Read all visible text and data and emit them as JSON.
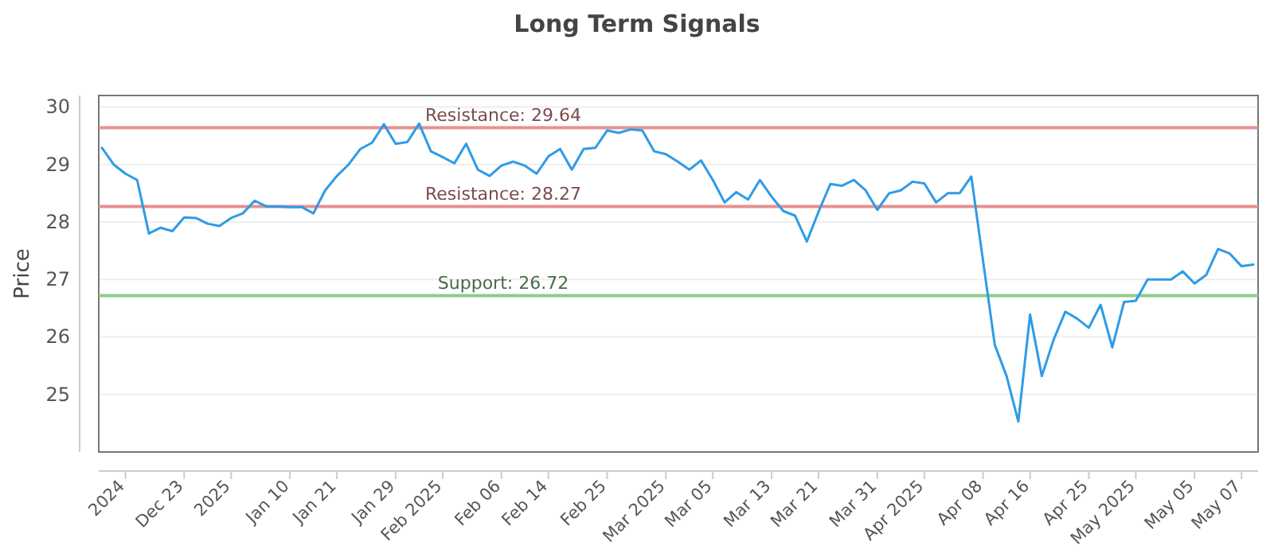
{
  "chart_data": {
    "type": "line",
    "title": "Long Term Signals",
    "ylabel": "Price",
    "categories": [
      null,
      null,
      "2024",
      null,
      null,
      null,
      null,
      "Dec 23",
      null,
      null,
      null,
      "2025",
      null,
      null,
      null,
      null,
      "Jan 10",
      null,
      null,
      null,
      "Jan 21",
      null,
      null,
      null,
      null,
      "Jan 29",
      null,
      null,
      null,
      "Feb 2025",
      null,
      null,
      null,
      null,
      "Feb 06",
      null,
      null,
      null,
      "Feb 14",
      null,
      null,
      null,
      null,
      "Feb 25",
      null,
      null,
      null,
      null,
      "Mar 2025",
      null,
      null,
      null,
      "Mar 05",
      null,
      null,
      null,
      null,
      "Mar 13",
      null,
      null,
      null,
      "Mar 21",
      null,
      null,
      null,
      null,
      "Mar 31",
      null,
      null,
      null,
      "Apr 2025",
      null,
      null,
      null,
      null,
      "Apr 08",
      null,
      null,
      null,
      "Apr 16",
      null,
      null,
      null,
      null,
      "Apr 25",
      null,
      null,
      null,
      "May 2025",
      null,
      null,
      null,
      null,
      "May 05",
      null,
      null,
      null,
      "May 07",
      null
    ],
    "series": [
      {
        "color": "#2e9be6",
        "values": [
          29.29,
          29.0,
          28.84,
          28.73,
          27.8,
          27.9,
          27.84,
          28.08,
          28.07,
          27.97,
          27.93,
          28.07,
          28.15,
          28.37,
          28.27,
          28.27,
          28.26,
          28.26,
          28.15,
          28.55,
          28.8,
          29.0,
          29.27,
          29.38,
          29.7,
          29.36,
          29.39,
          29.71,
          29.23,
          29.13,
          29.02,
          29.36,
          28.91,
          28.8,
          28.98,
          29.05,
          28.98,
          28.84,
          29.14,
          29.27,
          28.91,
          29.27,
          29.29,
          29.59,
          29.55,
          29.61,
          29.59,
          29.23,
          29.18,
          29.05,
          28.91,
          29.07,
          28.73,
          28.34,
          28.52,
          28.39,
          28.73,
          28.44,
          28.19,
          28.11,
          27.66,
          28.18,
          28.66,
          28.63,
          28.73,
          28.55,
          28.21,
          28.5,
          28.55,
          28.7,
          28.67,
          28.34,
          28.5,
          28.5,
          28.79,
          27.32,
          25.86,
          25.32,
          24.53,
          26.39,
          25.32,
          25.95,
          26.44,
          26.32,
          26.16,
          26.56,
          25.82,
          26.61,
          26.63,
          27.0,
          27.0,
          27.0,
          27.14,
          26.93,
          27.08,
          27.53,
          27.45,
          27.23,
          27.26
        ]
      }
    ],
    "ylim": [
      24,
      30.2
    ],
    "yticks": [
      25,
      26,
      27,
      28,
      29,
      30
    ],
    "grid": "y",
    "marker": "none",
    "line_style": "solid",
    "ref_lines": [
      {
        "axis": "y",
        "value": 29.64,
        "label": "Resistance: 29.64",
        "color": "#e89090"
      },
      {
        "axis": "y",
        "value": 28.27,
        "label": "Resistance: 28.27",
        "color": "#e89090"
      },
      {
        "axis": "y",
        "value": 26.72,
        "label": "Support: 26.72",
        "color": "#8ccc8c"
      }
    ]
  }
}
